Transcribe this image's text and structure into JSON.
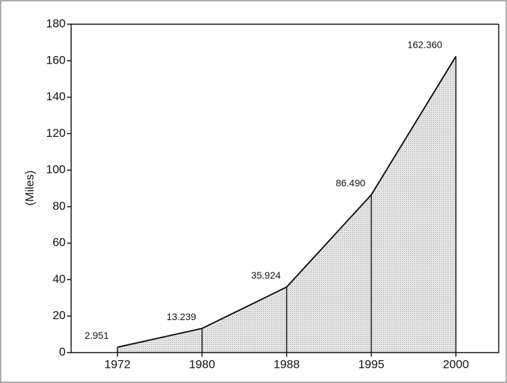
{
  "chart_data": {
    "type": "area",
    "y_label": "(Miles)",
    "categories": [
      "1972",
      "1980",
      "1988",
      "1995",
      "2000"
    ],
    "values": [
      2.951,
      13.239,
      35.924,
      86.49,
      162.36
    ],
    "value_labels": [
      "2.951",
      "13.239",
      "35.924",
      "86.490",
      "162.360"
    ],
    "color": "#d4d4d4",
    "ylim": [
      0,
      180
    ],
    "yticks": [
      0,
      20,
      40,
      60,
      80,
      100,
      120,
      140,
      160,
      180
    ]
  }
}
